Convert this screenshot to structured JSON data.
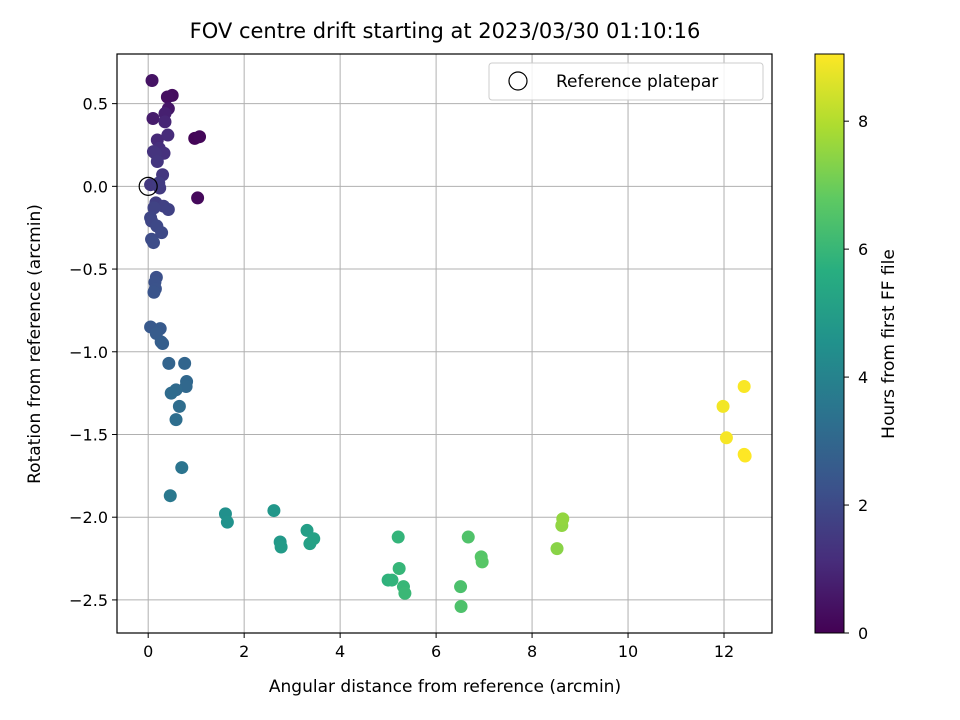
{
  "chart_data": {
    "type": "scatter",
    "title": "FOV centre drift starting at 2023/03/30 01:10:16",
    "xlabel": "Angular distance from reference (arcmin)",
    "ylabel": "Rotation from reference (arcmin)",
    "xlim": [
      -0.65,
      13.0
    ],
    "ylim": [
      -2.7,
      0.8
    ],
    "xticks": [
      0,
      2,
      4,
      6,
      8,
      10,
      12
    ],
    "xtick_labels": [
      "0",
      "2",
      "4",
      "6",
      "8",
      "10",
      "12"
    ],
    "yticks": [
      0.5,
      0.0,
      -0.5,
      -1.0,
      -1.5,
      -2.0,
      -2.5
    ],
    "ytick_labels": [
      "0.5",
      "0.0",
      "−0.5",
      "−1.0",
      "−1.5",
      "−2.0",
      "−2.5"
    ],
    "grid": true,
    "legend": {
      "placement": "top-right",
      "entries": [
        "Reference platepar"
      ]
    },
    "reference_point": {
      "name": "Reference platepar",
      "x": 0.0,
      "y": 0.0
    },
    "colorbar": {
      "label": "Hours from first FF file",
      "range": [
        0,
        9.05
      ],
      "colormap": "viridis",
      "ticks": [
        0,
        2,
        4,
        6,
        8
      ],
      "tick_labels": [
        "0",
        "2",
        "4",
        "6",
        "8"
      ]
    },
    "points": [
      {
        "x": 0.97,
        "y": 0.29,
        "c": 0.1
      },
      {
        "x": 1.07,
        "y": 0.3,
        "c": 0.15
      },
      {
        "x": 1.03,
        "y": -0.07,
        "c": 0.2
      },
      {
        "x": 0.5,
        "y": 0.55,
        "c": 0.3
      },
      {
        "x": 0.4,
        "y": 0.54,
        "c": 0.35
      },
      {
        "x": 0.08,
        "y": 0.64,
        "c": 0.45
      },
      {
        "x": 0.42,
        "y": 0.47,
        "c": 0.55
      },
      {
        "x": 0.1,
        "y": 0.41,
        "c": 0.7
      },
      {
        "x": 0.35,
        "y": 0.44,
        "c": 0.8
      },
      {
        "x": 0.35,
        "y": 0.39,
        "c": 0.95
      },
      {
        "x": 0.19,
        "y": 0.28,
        "c": 1.05
      },
      {
        "x": 0.41,
        "y": 0.31,
        "c": 1.1
      },
      {
        "x": 0.23,
        "y": 0.23,
        "c": 1.2
      },
      {
        "x": 0.33,
        "y": 0.2,
        "c": 1.25
      },
      {
        "x": 0.11,
        "y": 0.21,
        "c": 1.3
      },
      {
        "x": 0.15,
        "y": 0.2,
        "c": 1.35
      },
      {
        "x": 0.19,
        "y": 0.15,
        "c": 1.4
      },
      {
        "x": 0.3,
        "y": 0.07,
        "c": 1.45
      },
      {
        "x": 0.05,
        "y": 0.01,
        "c": 1.5
      },
      {
        "x": 0.24,
        "y": -0.01,
        "c": 1.55
      },
      {
        "x": 0.22,
        "y": 0.02,
        "c": 1.6
      },
      {
        "x": 0.16,
        "y": -0.1,
        "c": 1.65
      },
      {
        "x": 0.32,
        "y": -0.12,
        "c": 1.7
      },
      {
        "x": 0.42,
        "y": -0.14,
        "c": 1.75
      },
      {
        "x": 0.12,
        "y": -0.13,
        "c": 1.8
      },
      {
        "x": 0.05,
        "y": -0.19,
        "c": 1.85
      },
      {
        "x": 0.07,
        "y": -0.21,
        "c": 1.9
      },
      {
        "x": 0.18,
        "y": -0.24,
        "c": 1.95
      },
      {
        "x": 0.28,
        "y": -0.28,
        "c": 2.0
      },
      {
        "x": 0.07,
        "y": -0.32,
        "c": 2.05
      },
      {
        "x": 0.11,
        "y": -0.34,
        "c": 2.1
      },
      {
        "x": 0.17,
        "y": -0.55,
        "c": 2.2
      },
      {
        "x": 0.14,
        "y": -0.58,
        "c": 2.25
      },
      {
        "x": 0.15,
        "y": -0.62,
        "c": 2.3
      },
      {
        "x": 0.12,
        "y": -0.64,
        "c": 2.35
      },
      {
        "x": 0.05,
        "y": -0.85,
        "c": 2.5
      },
      {
        "x": 0.25,
        "y": -0.86,
        "c": 2.55
      },
      {
        "x": 0.17,
        "y": -0.89,
        "c": 2.6
      },
      {
        "x": 0.27,
        "y": -0.94,
        "c": 2.65
      },
      {
        "x": 0.3,
        "y": -0.95,
        "c": 2.7
      },
      {
        "x": 0.43,
        "y": -1.07,
        "c": 2.9
      },
      {
        "x": 0.76,
        "y": -1.07,
        "c": 2.95
      },
      {
        "x": 0.8,
        "y": -1.18,
        "c": 3.0
      },
      {
        "x": 0.79,
        "y": -1.21,
        "c": 3.05
      },
      {
        "x": 0.58,
        "y": -1.23,
        "c": 3.1
      },
      {
        "x": 0.48,
        "y": -1.25,
        "c": 3.15
      },
      {
        "x": 0.65,
        "y": -1.33,
        "c": 3.2
      },
      {
        "x": 0.58,
        "y": -1.41,
        "c": 3.25
      },
      {
        "x": 0.7,
        "y": -1.7,
        "c": 3.45
      },
      {
        "x": 0.46,
        "y": -1.87,
        "c": 3.6
      },
      {
        "x": 1.61,
        "y": -1.98,
        "c": 4.5
      },
      {
        "x": 1.65,
        "y": -2.03,
        "c": 4.55
      },
      {
        "x": 2.62,
        "y": -1.96,
        "c": 4.75
      },
      {
        "x": 2.75,
        "y": -2.15,
        "c": 4.85
      },
      {
        "x": 2.77,
        "y": -2.18,
        "c": 4.9
      },
      {
        "x": 3.31,
        "y": -2.08,
        "c": 5.05
      },
      {
        "x": 3.37,
        "y": -2.16,
        "c": 5.1
      },
      {
        "x": 3.45,
        "y": -2.13,
        "c": 5.15
      },
      {
        "x": 5.21,
        "y": -2.12,
        "c": 5.9
      },
      {
        "x": 5.23,
        "y": -2.31,
        "c": 5.95
      },
      {
        "x": 5.0,
        "y": -2.38,
        "c": 5.8
      },
      {
        "x": 5.08,
        "y": -2.38,
        "c": 5.85
      },
      {
        "x": 5.32,
        "y": -2.42,
        "c": 6.0
      },
      {
        "x": 5.35,
        "y": -2.46,
        "c": 6.05
      },
      {
        "x": 6.51,
        "y": -2.42,
        "c": 6.4
      },
      {
        "x": 6.52,
        "y": -2.54,
        "c": 6.45
      },
      {
        "x": 6.67,
        "y": -2.12,
        "c": 6.5
      },
      {
        "x": 6.94,
        "y": -2.24,
        "c": 6.6
      },
      {
        "x": 6.96,
        "y": -2.27,
        "c": 6.65
      },
      {
        "x": 8.52,
        "y": -2.19,
        "c": 7.4
      },
      {
        "x": 8.62,
        "y": -2.05,
        "c": 7.5
      },
      {
        "x": 8.64,
        "y": -2.01,
        "c": 7.55
      },
      {
        "x": 11.98,
        "y": -1.33,
        "c": 8.9
      },
      {
        "x": 12.05,
        "y": -1.52,
        "c": 8.95
      },
      {
        "x": 12.42,
        "y": -1.21,
        "c": 9.0
      },
      {
        "x": 12.42,
        "y": -1.62,
        "c": 9.02
      },
      {
        "x": 12.44,
        "y": -1.63,
        "c": 9.05
      }
    ]
  }
}
